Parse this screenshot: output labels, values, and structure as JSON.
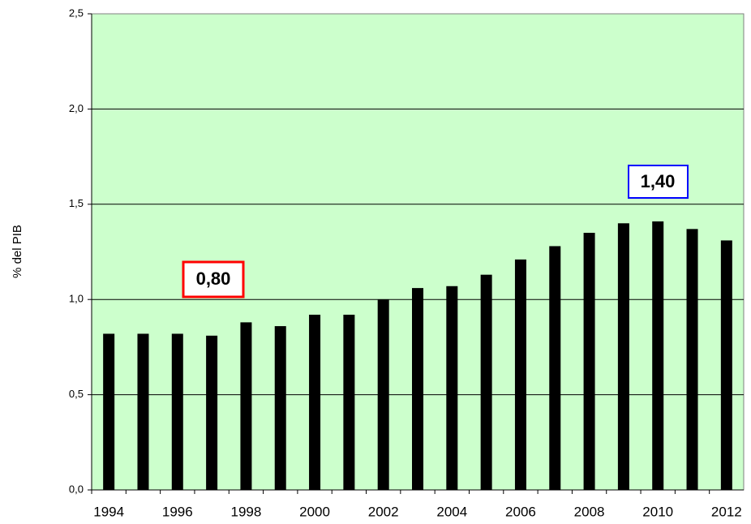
{
  "chart_data": {
    "type": "bar",
    "y_label": "% del PIB",
    "categories": [
      "1994",
      null,
      "1996",
      null,
      "1998",
      null,
      "2000",
      null,
      "2002",
      null,
      "2004",
      null,
      "2006",
      null,
      "2008",
      null,
      "2010",
      null,
      "2012"
    ],
    "values": [
      0.82,
      0.82,
      0.82,
      0.81,
      0.88,
      0.86,
      0.92,
      0.92,
      1.0,
      1.06,
      1.07,
      1.13,
      1.21,
      1.28,
      1.35,
      1.4,
      1.41,
      1.37,
      1.31
    ],
    "color": "#000000",
    "background": "#ccffcc",
    "ylim": [
      0,
      2.5
    ],
    "yticks": [
      {
        "value": 0,
        "label": "0,0"
      },
      {
        "value": 0.5,
        "label": "0,5"
      },
      {
        "value": 1,
        "label": "1,0"
      },
      {
        "value": 1.5,
        "label": "1,5"
      },
      {
        "value": 2,
        "label": "2,0"
      },
      {
        "value": 2.5,
        "label": "2,5"
      }
    ],
    "grid": true,
    "annotations": [
      {
        "text": "0,80",
        "color": "#ff0000"
      },
      {
        "text": "1,40",
        "color": "#0000ff"
      }
    ]
  }
}
